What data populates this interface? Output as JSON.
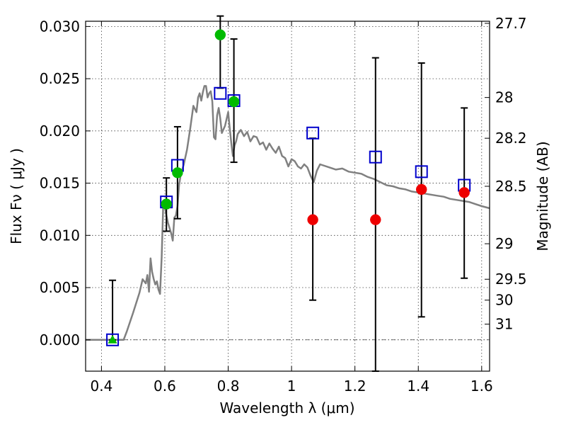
{
  "chart_data": {
    "type": "scatter",
    "xlabel": "Wavelength  λ (μm)",
    "ylabel": "Flux  Fν  ( μJy )",
    "y2label": "Magnitude (AB)",
    "xlim": [
      0.35,
      1.625
    ],
    "ylim": [
      -0.003,
      0.0305
    ],
    "xticks": [
      0.4,
      0.6,
      0.8,
      1.0,
      1.2,
      1.4,
      1.6
    ],
    "xtick_labels": [
      "0.4",
      "0.6",
      "0.8",
      "1",
      "1.2",
      "1.4",
      "1.6"
    ],
    "yticks": [
      0.0,
      0.005,
      0.01,
      0.015,
      0.02,
      0.025,
      0.03
    ],
    "ytick_labels": [
      "0.000",
      "0.005",
      "0.010",
      "0.015",
      "0.020",
      "0.025",
      "0.030"
    ],
    "mag_ticks": [
      {
        "label": "27.7",
        "flux": 0.0303
      },
      {
        "label": "28",
        "flux": 0.0232
      },
      {
        "label": "28.2",
        "flux": 0.0193
      },
      {
        "label": "28.5",
        "flux": 0.0147
      },
      {
        "label": "29",
        "flux": 0.0092
      },
      {
        "label": "29.5",
        "flux": 0.0058
      },
      {
        "label": "30",
        "flux": 0.0038
      },
      {
        "label": "31",
        "flux": 0.0015
      }
    ],
    "grid": true,
    "zero_line": true,
    "model_sed": {
      "color": "#808080",
      "x": [
        0.35,
        0.47,
        0.48,
        0.5,
        0.52,
        0.53,
        0.54,
        0.545,
        0.55,
        0.555,
        0.56,
        0.565,
        0.57,
        0.575,
        0.58,
        0.585,
        0.59,
        0.595,
        0.6,
        0.605,
        0.61,
        0.62,
        0.625,
        0.63,
        0.635,
        0.64,
        0.645,
        0.65,
        0.66,
        0.67,
        0.68,
        0.69,
        0.7,
        0.705,
        0.71,
        0.715,
        0.72,
        0.725,
        0.73,
        0.735,
        0.74,
        0.745,
        0.75,
        0.755,
        0.76,
        0.765,
        0.77,
        0.775,
        0.78,
        0.79,
        0.8,
        0.805,
        0.81,
        0.815,
        0.82,
        0.825,
        0.83,
        0.84,
        0.85,
        0.86,
        0.87,
        0.88,
        0.89,
        0.9,
        0.91,
        0.92,
        0.93,
        0.94,
        0.95,
        0.96,
        0.97,
        0.98,
        0.99,
        1.0,
        1.01,
        1.02,
        1.03,
        1.04,
        1.05,
        1.06,
        1.07,
        1.08,
        1.09,
        1.1,
        1.12,
        1.14,
        1.16,
        1.18,
        1.2,
        1.22,
        1.24,
        1.26,
        1.28,
        1.3,
        1.32,
        1.34,
        1.36,
        1.38,
        1.4,
        1.42,
        1.44,
        1.46,
        1.48,
        1.5,
        1.52,
        1.54,
        1.56,
        1.58,
        1.6,
        1.625
      ],
      "y": [
        0.0,
        0.0,
        0.0008,
        0.0026,
        0.0045,
        0.0058,
        0.0054,
        0.0062,
        0.0046,
        0.0078,
        0.0065,
        0.0058,
        0.0053,
        0.0056,
        0.0048,
        0.0044,
        0.0079,
        0.0129,
        0.0127,
        0.0119,
        0.0112,
        0.0102,
        0.0095,
        0.0117,
        0.0119,
        0.0128,
        0.0148,
        0.0158,
        0.0168,
        0.0182,
        0.0202,
        0.0224,
        0.0218,
        0.0232,
        0.0236,
        0.0229,
        0.0237,
        0.0243,
        0.0243,
        0.0232,
        0.0236,
        0.0238,
        0.0228,
        0.0194,
        0.0192,
        0.0215,
        0.0222,
        0.0212,
        0.0198,
        0.0205,
        0.0218,
        0.0202,
        0.0188,
        0.0176,
        0.0186,
        0.019,
        0.0197,
        0.0201,
        0.0195,
        0.0199,
        0.019,
        0.0195,
        0.0194,
        0.0187,
        0.0189,
        0.0182,
        0.0188,
        0.0183,
        0.0179,
        0.0185,
        0.0176,
        0.0174,
        0.0166,
        0.0173,
        0.0171,
        0.0166,
        0.0164,
        0.0168,
        0.0165,
        0.0157,
        0.0151,
        0.0162,
        0.0168,
        0.0167,
        0.0165,
        0.0163,
        0.0164,
        0.0161,
        0.016,
        0.0159,
        0.0156,
        0.0154,
        0.0151,
        0.0148,
        0.0147,
        0.0145,
        0.0144,
        0.0142,
        0.0141,
        0.014,
        0.0139,
        0.0138,
        0.0137,
        0.0135,
        0.0134,
        0.0133,
        0.0132,
        0.013,
        0.0128,
        0.0126
      ]
    },
    "model_points": {
      "color": "#0000cc",
      "marker": "open-square",
      "x": [
        0.435,
        0.605,
        0.64,
        0.775,
        0.818,
        1.067,
        1.265,
        1.41,
        1.545
      ],
      "y": [
        0.0,
        0.0132,
        0.0167,
        0.0236,
        0.0229,
        0.0198,
        0.0175,
        0.0161,
        0.0148
      ]
    },
    "observed_detections": {
      "color": "#00bb00",
      "marker": "circle",
      "x": [
        0.605,
        0.64,
        0.775,
        0.818
      ],
      "y": [
        0.013,
        0.016,
        0.0292,
        0.0228
      ],
      "yerr_low": [
        0.0104,
        0.0116,
        0.0241,
        0.017
      ],
      "yerr_high": [
        0.0155,
        0.0204,
        0.031,
        0.0288
      ]
    },
    "observed_nondetections": {
      "color": "#ee0000",
      "marker": "circle",
      "x": [
        1.067,
        1.265,
        1.41,
        1.545
      ],
      "y": [
        0.0115,
        0.0115,
        0.0144,
        0.0141
      ],
      "yerr_low": [
        0.0038,
        -0.003,
        0.0022,
        0.0059
      ],
      "yerr_high": [
        0.0193,
        0.027,
        0.0265,
        0.0222
      ]
    },
    "upper_limit": {
      "color": "#00bb00",
      "marker": "triangle",
      "x": [
        0.435
      ],
      "y": [
        0.0
      ],
      "yerr_low": [
        0.0
      ],
      "yerr_high": [
        0.0057
      ]
    }
  }
}
